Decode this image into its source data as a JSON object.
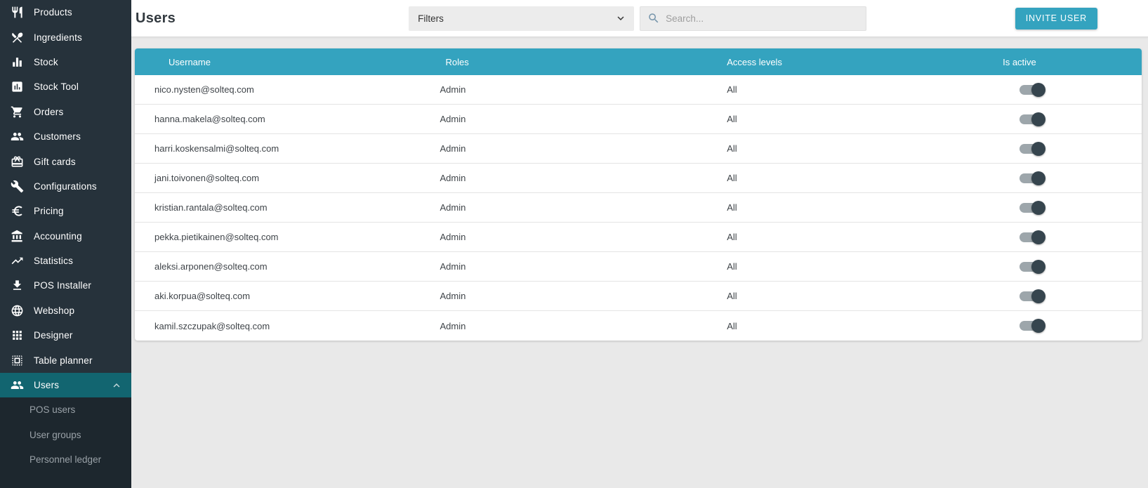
{
  "sidebar": {
    "items": [
      {
        "label": "Products",
        "icon": "restaurant-icon"
      },
      {
        "label": "Ingredients",
        "icon": "restaurant-menu-icon"
      },
      {
        "label": "Stock",
        "icon": "equalizer-icon"
      },
      {
        "label": "Stock Tool",
        "icon": "assessment-icon"
      },
      {
        "label": "Orders",
        "icon": "cart-icon"
      },
      {
        "label": "Customers",
        "icon": "people-icon"
      },
      {
        "label": "Gift cards",
        "icon": "giftcard-icon"
      },
      {
        "label": "Configurations",
        "icon": "wrench-icon"
      },
      {
        "label": "Pricing",
        "icon": "euro-icon"
      },
      {
        "label": "Accounting",
        "icon": "bank-icon"
      },
      {
        "label": "Statistics",
        "icon": "trending-up-icon"
      },
      {
        "label": "POS Installer",
        "icon": "download-icon"
      },
      {
        "label": "Webshop",
        "icon": "globe-icon"
      },
      {
        "label": "Designer",
        "icon": "apps-grid-icon"
      },
      {
        "label": "Table planner",
        "icon": "select-all-icon"
      },
      {
        "label": "Users",
        "icon": "people-icon",
        "active": true,
        "expanded": true
      }
    ],
    "subitems": [
      "POS users",
      "User groups",
      "Personnel ledger"
    ]
  },
  "header": {
    "title": "Users",
    "filters_label": "Filters",
    "search_placeholder": "Search...",
    "invite_button_label": "INVITE USER"
  },
  "table": {
    "columns": [
      "Username",
      "Roles",
      "Access levels",
      "Is active"
    ],
    "rows": [
      {
        "username": "nico.nysten@solteq.com",
        "role": "Admin",
        "access": "All",
        "is_active": true
      },
      {
        "username": "hanna.makela@solteq.com",
        "role": "Admin",
        "access": "All",
        "is_active": true
      },
      {
        "username": "harri.koskensalmi@solteq.com",
        "role": "Admin",
        "access": "All",
        "is_active": true
      },
      {
        "username": "jani.toivonen@solteq.com",
        "role": "Admin",
        "access": "All",
        "is_active": true
      },
      {
        "username": "kristian.rantala@solteq.com",
        "role": "Admin",
        "access": "All",
        "is_active": true
      },
      {
        "username": "pekka.pietikainen@solteq.com",
        "role": "Admin",
        "access": "All",
        "is_active": true
      },
      {
        "username": "aleksi.arponen@solteq.com",
        "role": "Admin",
        "access": "All",
        "is_active": true
      },
      {
        "username": "aki.korpua@solteq.com",
        "role": "Admin",
        "access": "All",
        "is_active": true
      },
      {
        "username": "kamil.szczupak@solteq.com",
        "role": "Admin",
        "access": "All",
        "is_active": true
      }
    ]
  },
  "colors": {
    "accent_teal": "#34a3bf",
    "sidebar_background": "#26323b",
    "sidebar_active_teal": "#126570",
    "sidebar_submenu_background": "#1d272e",
    "content_background": "#e9e9e9",
    "toggle_track": "#9da6ab",
    "toggle_thumb_on": "#36454e"
  }
}
